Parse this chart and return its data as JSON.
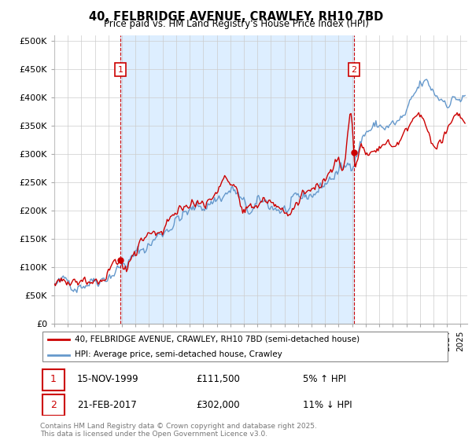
{
  "title": "40, FELBRIDGE AVENUE, CRAWLEY, RH10 7BD",
  "subtitle": "Price paid vs. HM Land Registry's House Price Index (HPI)",
  "ylabel_ticks": [
    "£0",
    "£50K",
    "£100K",
    "£150K",
    "£200K",
    "£250K",
    "£300K",
    "£350K",
    "£400K",
    "£450K",
    "£500K"
  ],
  "ytick_values": [
    0,
    50000,
    100000,
    150000,
    200000,
    250000,
    300000,
    350000,
    400000,
    450000,
    500000
  ],
  "xlim": [
    1995.0,
    2025.5
  ],
  "ylim": [
    0,
    510000
  ],
  "legend_line1": "40, FELBRIDGE AVENUE, CRAWLEY, RH10 7BD (semi-detached house)",
  "legend_line2": "HPI: Average price, semi-detached house, Crawley",
  "marker1_date": "15-NOV-1999",
  "marker1_price": "£111,500",
  "marker1_hpi": "5% ↑ HPI",
  "marker2_date": "21-FEB-2017",
  "marker2_price": "£302,000",
  "marker2_hpi": "11% ↓ HPI",
  "footnote": "Contains HM Land Registry data © Crown copyright and database right 2025.\nThis data is licensed under the Open Government Licence v3.0.",
  "price_color": "#cc0000",
  "hpi_color": "#6699cc",
  "fill_color": "#ddeeff",
  "marker_color": "#cc0000",
  "bg_color": "#ffffff",
  "grid_color": "#cccccc",
  "purchase1_x": 1999.88,
  "purchase1_y": 111500,
  "purchase2_x": 2017.13,
  "purchase2_y": 302000
}
